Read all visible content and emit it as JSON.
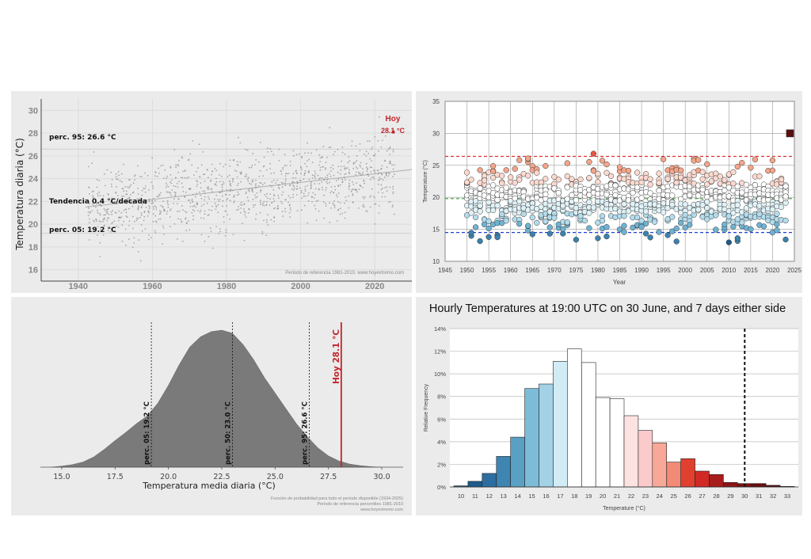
{
  "chart_data": [
    {
      "type": "scatter",
      "ylabel": "Temperatura diaria (°C)",
      "xlim": [
        1930,
        2030
      ],
      "ylim": [
        15,
        31
      ],
      "x_ticks": [
        1940,
        1960,
        1980,
        2000,
        2020
      ],
      "y_ticks": [
        16,
        18,
        20,
        22,
        24,
        26,
        28,
        30
      ],
      "annotations": {
        "p95": "perc. 95: 26.6 °C",
        "p05": "perc. 05: 19.2 °C",
        "trend": "Tendencia 0.4 °C/decada",
        "today_label": "Hoy",
        "today_value": "28.1 °C"
      },
      "today_point": {
        "x": 2025,
        "y": 28.1
      },
      "p95": 26.6,
      "p05": 19.2,
      "trend_line": [
        {
          "x": 1942,
          "y": 21.5
        },
        {
          "x": 2030,
          "y": 24.8
        }
      ],
      "data_range": {
        "x": [
          1943,
          2025
        ]
      },
      "footer": "Periodo de referencia 1981-2010. www.hoyextremo.com"
    },
    {
      "type": "scatter",
      "ylabel": "Temperature (°C)",
      "xlabel": "Year",
      "xlim": [
        1945,
        2025
      ],
      "ylim": [
        10,
        35
      ],
      "x_ticks": [
        1945,
        1950,
        1955,
        1960,
        1965,
        1970,
        1975,
        1980,
        1985,
        1990,
        1995,
        2000,
        2005,
        2010,
        2015,
        2020,
        2025
      ],
      "y_ticks": [
        10,
        15,
        20,
        25,
        30,
        35
      ],
      "ref_lines": {
        "upper": 26.4,
        "middle": 19.8,
        "lower": 14.5
      },
      "ref_colors": {
        "upper": "#e03030",
        "middle": "#3a9a3a",
        "lower": "#2040d0"
      },
      "today_point": {
        "x": 2024,
        "y": 30.0
      },
      "data_range": {
        "x": [
          1950,
          2023
        ]
      }
    },
    {
      "type": "area",
      "xlabel": "Temperatura media diaria (°C)",
      "xlim": [
        14,
        31
      ],
      "x_ticks": [
        "15.0",
        "17.5",
        "20.0",
        "22.5",
        "25.0",
        "27.5",
        "30.0"
      ],
      "density": {
        "x": [
          14.5,
          15,
          15.5,
          16,
          16.5,
          17,
          17.5,
          18,
          18.5,
          19,
          19.5,
          20,
          20.5,
          21,
          21.5,
          22,
          22.5,
          23,
          23.5,
          24,
          24.5,
          25,
          25.5,
          26,
          26.5,
          27,
          27.5,
          28,
          28.5,
          29,
          29.5,
          30
        ],
        "y": [
          0.0,
          0.002,
          0.005,
          0.01,
          0.02,
          0.035,
          0.052,
          0.068,
          0.085,
          0.1,
          0.125,
          0.16,
          0.2,
          0.235,
          0.255,
          0.265,
          0.268,
          0.262,
          0.24,
          0.21,
          0.175,
          0.145,
          0.115,
          0.085,
          0.06,
          0.038,
          0.022,
          0.012,
          0.006,
          0.003,
          0.001,
          0.0
        ]
      },
      "vlines": [
        {
          "x": 19.2,
          "label": "perc. 05: 19.2 °C"
        },
        {
          "x": 23.0,
          "label": "perc. 50: 23.0 °C"
        },
        {
          "x": 26.6,
          "label": "perc. 95: 26.6 °C"
        }
      ],
      "today": {
        "x": 28.1,
        "label": "Hoy 28.1 °C",
        "color": "#c0262b"
      },
      "footer_lines": [
        "Función de probabilidad para todo el periodo disponible (1934-2025)",
        "Periodo de referencia percentiles 1981-2010",
        "www.hoyextremo.com"
      ]
    },
    {
      "type": "bar",
      "title": "Hourly Temperatures at 19:00 UTC on 30 June, and 7 days either side",
      "xlabel": "Temperature (°C)",
      "ylabel": "Relative Frequency",
      "categories": [
        "10",
        "11",
        "12",
        "13",
        "14",
        "15",
        "16",
        "17",
        "18",
        "19",
        "20",
        "21",
        "22",
        "23",
        "24",
        "25",
        "26",
        "27",
        "28",
        "29",
        "30",
        "31",
        "32",
        "33"
      ],
      "values": [
        0.1,
        0.5,
        1.2,
        2.7,
        4.4,
        8.7,
        9.1,
        11.1,
        12.2,
        11.0,
        7.9,
        7.8,
        6.3,
        5.0,
        3.9,
        2.2,
        2.5,
        1.4,
        1.1,
        0.4,
        0.3,
        0.3,
        0.15,
        0.05
      ],
      "colors": [
        "#1e5a8a",
        "#1e5a8a",
        "#2c6e9f",
        "#3e85b2",
        "#5aa0c4",
        "#7dbcd8",
        "#a3d1e6",
        "#d2ecf5",
        "#ffffff",
        "#ffffff",
        "#ffffff",
        "#ffffff",
        "#fde2e2",
        "#fbcaca",
        "#f8a898",
        "#f38a76",
        "#e2402f",
        "#d12a24",
        "#a81c1c",
        "#8b1616",
        "#7a1010",
        "#6b0d0d",
        "#5c0a0a",
        "#4a0606"
      ],
      "ylim": [
        0,
        14
      ],
      "y_ticks": [
        "0%",
        "2%",
        "4%",
        "6%",
        "8%",
        "10%",
        "12%",
        "14%"
      ],
      "threshold": 30
    }
  ]
}
